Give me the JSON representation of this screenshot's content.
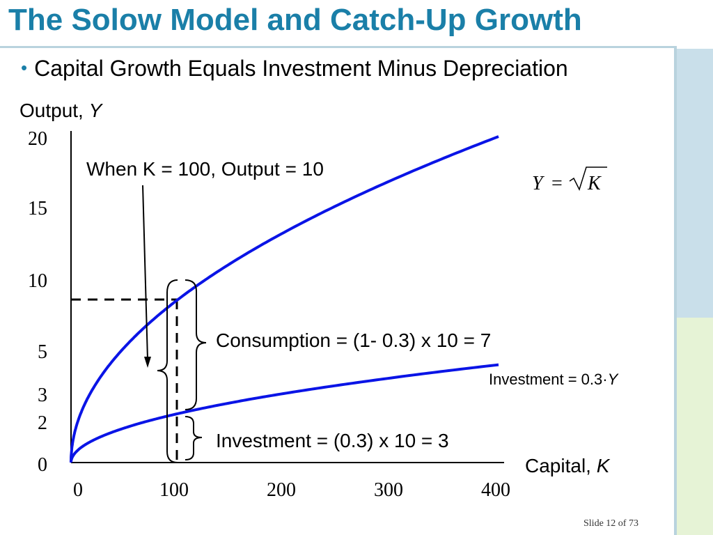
{
  "slide": {
    "title": "The Solow Model and Catch-Up Growth",
    "bullet": "Capital Growth Equals Investment Minus Depreciation",
    "footer": "Slide 12 of 73"
  },
  "colors": {
    "title": "#1a7fa8",
    "curve": "#0a14e6",
    "axis": "#000000"
  },
  "chart_data": {
    "type": "line",
    "ylabel_prefix": "Output, ",
    "ylabel_var": "Y",
    "xlabel_prefix": "Capital, ",
    "xlabel_var": "K",
    "xlim": [
      0,
      400
    ],
    "ylim": [
      0,
      20
    ],
    "x_ticks": [
      0,
      100,
      200,
      300,
      400
    ],
    "y_ticks": [
      0,
      2,
      3,
      5,
      10,
      15,
      20
    ],
    "series": [
      {
        "name": "Y = √K",
        "label_lhs": "Y",
        "label_eq": "=",
        "label_rhs": "K",
        "k_max": 400,
        "coef": 1.0,
        "function": "sqrt",
        "color": "#0a14e6"
      },
      {
        "name": "Investment = 0.3·Y",
        "label_prefix": "Investment = 0.3·",
        "label_var": "Y",
        "k_max": 400,
        "coef": 0.3,
        "function": "sqrt",
        "color": "#0a14e6"
      }
    ],
    "reference": {
      "k": 100,
      "y": 10,
      "investment": 3
    },
    "annotations": {
      "when": "When K = 100, Output = 10",
      "consumption": "Consumption = (1- 0.3) x 10 = 7",
      "investment": "Investment = (0.3) x 10 = 3"
    }
  }
}
